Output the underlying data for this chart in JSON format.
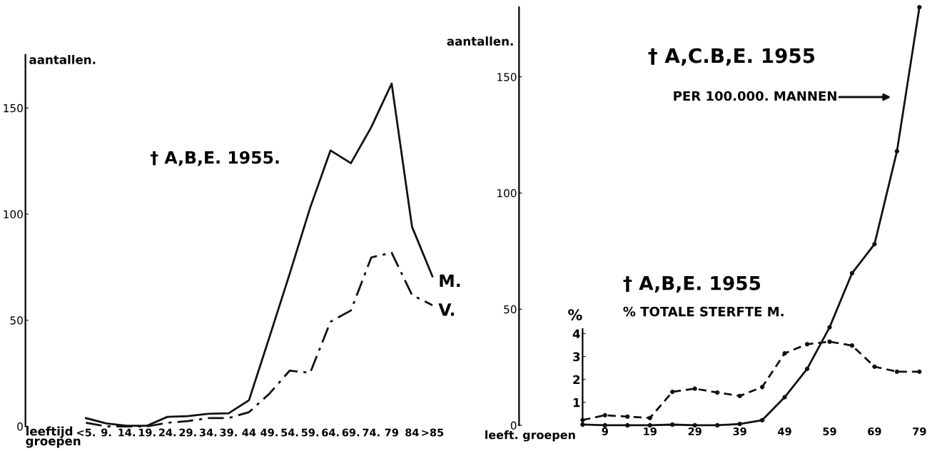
{
  "chart_data": [
    {
      "type": "line",
      "title": "† A,B,E. 1955.",
      "xlabel": "leeftijd groepen",
      "ylabel": "aantallen.",
      "categories": [
        "<5.",
        "9.",
        "14.",
        "19.",
        "24.",
        "29.",
        "34.",
        "39.",
        "44",
        "49.",
        "54.",
        "59.",
        "64.",
        "69.",
        "74.",
        "79",
        "84",
        ">85"
      ],
      "series": [
        {
          "name": "M.",
          "color": "#111111",
          "line_style": "solid",
          "values": [
            3.9,
            1.4,
            0.3,
            0.3,
            4.5,
            4.8,
            5.9,
            6.2,
            12.3,
            42,
            72,
            103,
            130,
            124,
            141,
            161.5,
            94,
            70.7
          ]
        },
        {
          "name": "V.",
          "color": "#111111",
          "line_style": "dashdot",
          "values": [
            1.7,
            0,
            0,
            0,
            1.7,
            2.5,
            3.9,
            3.9,
            6.7,
            15.4,
            26.3,
            25.2,
            49.3,
            54.6,
            79.6,
            81.8,
            61.9,
            57.1
          ]
        }
      ],
      "ylim": [
        0,
        175
      ],
      "yticks": [
        0,
        50,
        100,
        150
      ],
      "grid": false,
      "legend": false,
      "marker": "none"
    },
    {
      "type": "line",
      "title": "† A,C.B,E. 1955",
      "subtitle": "PER 100.000. MANNEN",
      "xlabel": "leeft. groepen",
      "ylabel": "aantallen.",
      "categories": [
        null,
        "9",
        null,
        "19",
        null,
        "29",
        null,
        "39",
        null,
        "49",
        null,
        "59",
        null,
        "69",
        null,
        "79"
      ],
      "series": [
        {
          "color": "#111111",
          "line_style": "solid",
          "values": [
            0.3,
            0,
            0,
            0,
            0.3,
            0,
            0,
            0.6,
            2.2,
            12.1,
            24.3,
            42.2,
            65.5,
            78,
            118,
            180
          ]
        }
      ],
      "ylim": [
        0,
        180
      ],
      "yticks": [
        0,
        50,
        100,
        150
      ],
      "grid": false,
      "legend": false,
      "marker": "circle"
    },
    {
      "type": "line",
      "title": "† A,B,E. 1955",
      "subtitle": "% TOTALE STERFTE M.",
      "ylabel": "%",
      "categories": [
        null,
        null,
        null,
        null,
        null,
        null,
        null,
        null,
        null,
        null,
        null,
        null,
        null,
        null,
        null,
        null
      ],
      "series": [
        {
          "color": "#111111",
          "line_style": "dashed",
          "values": [
            0.23,
            0.44,
            0.38,
            0.32,
            1.46,
            1.6,
            1.43,
            1.28,
            1.67,
            3.14,
            3.54,
            3.65,
            3.48,
            2.56,
            2.34,
            2.34
          ]
        }
      ],
      "ylim": [
        0,
        4.2
      ],
      "yticks": [
        1,
        2,
        3,
        4
      ],
      "tick_labels": "y",
      "grid": false,
      "legend": false,
      "marker": "circle"
    }
  ]
}
